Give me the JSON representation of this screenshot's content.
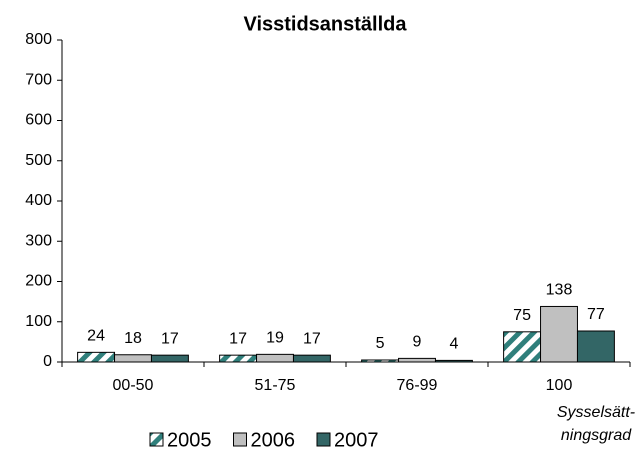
{
  "chart_data": {
    "type": "bar",
    "title": "Visstidsanställda",
    "categories": [
      "00-50",
      "51-75",
      "76-99",
      "100"
    ],
    "series": [
      {
        "name": "2005",
        "color": "#2f7f7b",
        "pattern": "hatched",
        "values": [
          24,
          17,
          5,
          75
        ]
      },
      {
        "name": "2006",
        "color": "#c0c0c0",
        "values": [
          18,
          19,
          9,
          138
        ]
      },
      {
        "name": "2007",
        "color": "#336666",
        "values": [
          17,
          17,
          4,
          77
        ]
      }
    ],
    "xlabel": [
      "Sysselsätt-",
      "ningsgrad"
    ],
    "ylim": [
      0,
      800
    ],
    "yticks": [
      0,
      100,
      200,
      300,
      400,
      500,
      600,
      700,
      800
    ],
    "grid": false,
    "legend": "bottom",
    "data_labels": true
  }
}
